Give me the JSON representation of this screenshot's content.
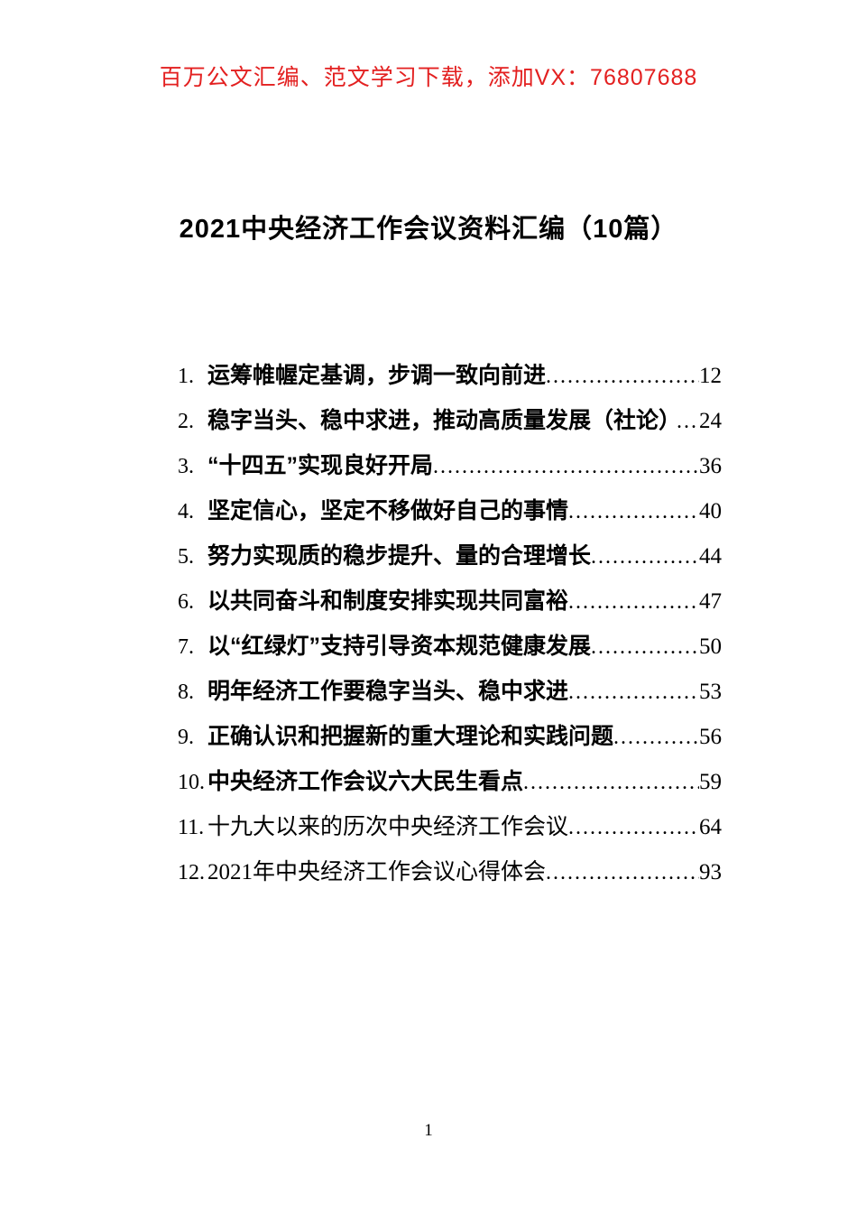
{
  "header": {
    "watermark": "百万公文汇编、范文学习下载，添加VX：76807688"
  },
  "title": "2021中央经济工作会议资料汇编（10篇）",
  "toc": {
    "items": [
      {
        "num": "1.",
        "title": "运筹帷幄定基调，步调一致向前进",
        "page": "12",
        "bold": true
      },
      {
        "num": "2.",
        "title": "稳字当头、稳中求进，推动高质量发展（社论）",
        "page": "24",
        "bold": true
      },
      {
        "num": "3.",
        "title": "“十四五”实现良好开局",
        "page": "36",
        "bold": true
      },
      {
        "num": "4.",
        "title": "坚定信心，坚定不移做好自己的事情",
        "page": "40",
        "bold": true
      },
      {
        "num": "5.",
        "title": "努力实现质的稳步提升、量的合理增长",
        "page": "44",
        "bold": true
      },
      {
        "num": "6.",
        "title": "以共同奋斗和制度安排实现共同富裕",
        "page": "47",
        "bold": true
      },
      {
        "num": "7.",
        "title": "以“红绿灯”支持引导资本规范健康发展",
        "page": "50",
        "bold": true
      },
      {
        "num": "8.",
        "title": "明年经济工作要稳字当头、稳中求进",
        "page": "53",
        "bold": true
      },
      {
        "num": "9.",
        "title": "正确认识和把握新的重大理论和实践问题",
        "page": "56",
        "bold": true
      },
      {
        "num": "10.",
        "title": "中央经济工作会议六大民生看点",
        "page": "59",
        "bold": true
      },
      {
        "num": "11.",
        "title": "十九大以来的历次中央经济工作会议",
        "page": "64",
        "bold": false
      },
      {
        "num": "12.",
        "title": "2021年中央经济工作会议心得体会",
        "page": "93",
        "bold": false
      }
    ]
  },
  "footer": {
    "page_number": "1"
  },
  "colors": {
    "watermark_red": "#e32020",
    "text_black": "#000000"
  }
}
